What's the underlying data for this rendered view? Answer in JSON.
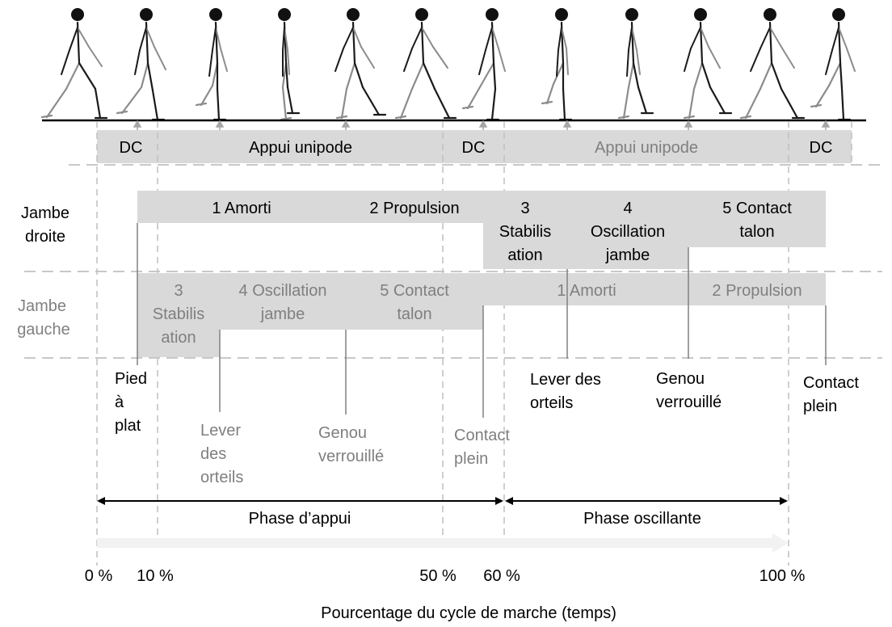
{
  "phases_top": {
    "dc1": "DC",
    "appui1": "Appui unipode",
    "dc2": "DC",
    "appui2": "Appui unipode",
    "dc3": "DC"
  },
  "right_leg": {
    "label_line1": "Jambe",
    "label_line2": "droite",
    "seg1": "1 Amorti",
    "seg2": "2 Propulsion",
    "seg3_l1": "3",
    "seg3_l2": "Stabilis",
    "seg3_l3": "ation",
    "seg4_l1": "4",
    "seg4_l2": "Oscillation",
    "seg4_l3": "jambe",
    "seg5_l1": "5 Contact",
    "seg5_l2": "talon"
  },
  "left_leg": {
    "label_line1": "Jambe",
    "label_line2": "gauche",
    "seg3_l1": "3",
    "seg3_l2": "Stabilis",
    "seg3_l3": "ation",
    "seg4_l1": "4 Oscillation",
    "seg4_l2": "jambe",
    "seg5_l1": "5 Contact",
    "seg5_l2": "talon",
    "seg1": "1 Amorti",
    "seg2": "2 Propulsion"
  },
  "events": {
    "pied_plat_l1": "Pied",
    "pied_plat_l2": "à",
    "pied_plat_l3": "plat",
    "lever_left_l1": "Lever",
    "lever_left_l2": "des",
    "lever_left_l3": "orteils",
    "genou_left_l1": "Genou",
    "genou_left_l2": "verrouillé",
    "contact_left_l1": "Contact",
    "contact_left_l2": "plein",
    "lever_right_l1": "Lever des",
    "lever_right_l2": "orteils",
    "genou_right_l1": "Genou",
    "genou_right_l2": "verrouillé",
    "contact_right_l1": "Contact",
    "contact_right_l2": "plein"
  },
  "phases_bottom": {
    "appui": "Phase d’appui",
    "oscillante": "Phase oscillante"
  },
  "axis": {
    "ticks": [
      "0 %",
      "10 %",
      "50 %",
      "60 %",
      "100 %"
    ],
    "title": "Pourcentage du cycle de marche (temps)"
  },
  "colors": {
    "box_fill": "#d9d9d9",
    "text_dark": "#000000",
    "text_grey": "#7f7f7f",
    "figure_dark": "#1a1a1a",
    "figure_grey": "#8c8c8c"
  }
}
